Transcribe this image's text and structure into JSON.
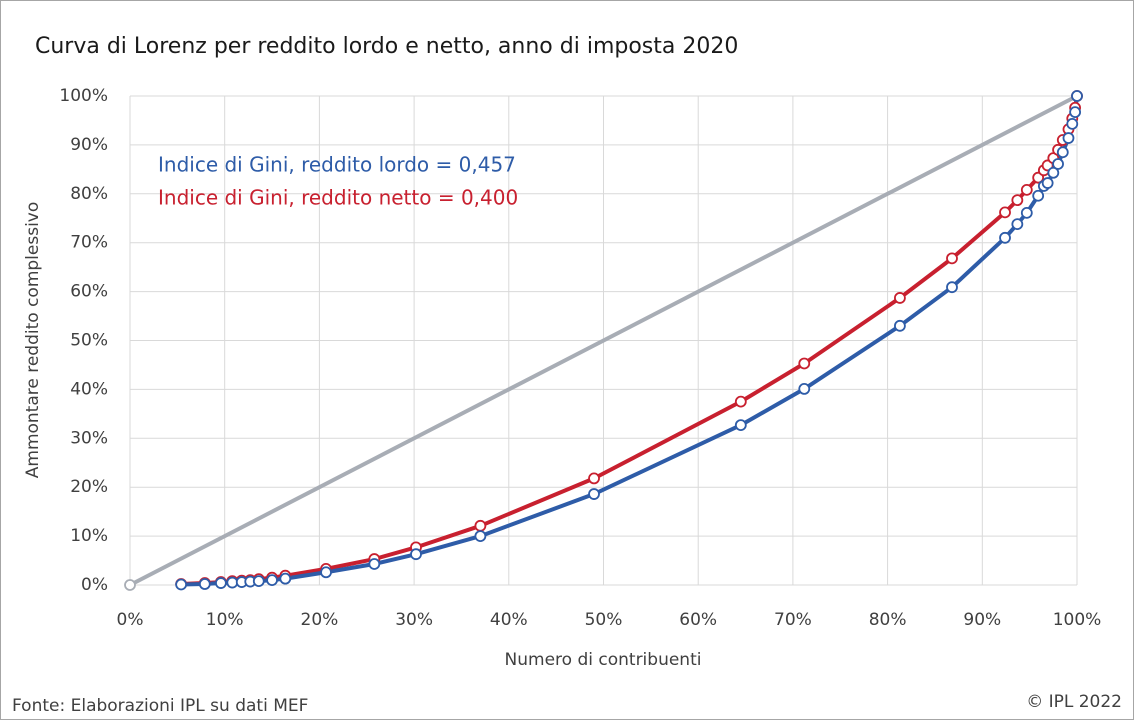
{
  "chart_data": {
    "type": "scatter",
    "title": "Curva di Lorenz per reddito lordo e netto, anno di imposta 2020",
    "x_label": "Numero di contribuenti",
    "y_label": "Ammontare reddito complessivo",
    "source": "Fonte: Elaborazioni IPL su dati MEF",
    "credit": "© IPL 2022",
    "annotations": [
      {
        "text": "Indice di Gini, reddito lordo = 0,457",
        "color": "#2e5ca8"
      },
      {
        "text": "Indice di Gini, reddito netto = 0,400",
        "color": "#c8202f"
      }
    ],
    "xlim": [
      0,
      100
    ],
    "ylim": [
      0,
      100
    ],
    "grid": true,
    "xticks": [
      {
        "value": 0,
        "label": "0%"
      },
      {
        "value": 10,
        "label": "10%"
      },
      {
        "value": 20,
        "label": "20%"
      },
      {
        "value": 30,
        "label": "30%"
      },
      {
        "value": 40,
        "label": "40%"
      },
      {
        "value": 50,
        "label": "50%"
      },
      {
        "value": 60,
        "label": "60%"
      },
      {
        "value": 70,
        "label": "70%"
      },
      {
        "value": 80,
        "label": "80%"
      },
      {
        "value": 90,
        "label": "90%"
      },
      {
        "value": 100,
        "label": "100%"
      }
    ],
    "yticks": [
      {
        "value": 0,
        "label": "0%"
      },
      {
        "value": 10,
        "label": "10%"
      },
      {
        "value": 20,
        "label": "20%"
      },
      {
        "value": 30,
        "label": "30%"
      },
      {
        "value": 40,
        "label": "40%"
      },
      {
        "value": 50,
        "label": "50%"
      },
      {
        "value": 60,
        "label": "60%"
      },
      {
        "value": 70,
        "label": "70%"
      },
      {
        "value": 80,
        "label": "80%"
      },
      {
        "value": 90,
        "label": "90%"
      },
      {
        "value": 100,
        "label": "100%"
      }
    ],
    "series": [
      {
        "color": "#a8adb5",
        "x": [
          0,
          100
        ],
        "values": [
          0,
          100
        ]
      },
      {
        "color": "#c8202f",
        "x": [
          5.4,
          7.9,
          9.6,
          10.8,
          11.8,
          12.7,
          13.6,
          15.0,
          16.4,
          20.7,
          25.8,
          30.2,
          37.0,
          49.0,
          64.5,
          71.2,
          81.3,
          86.8,
          92.4,
          93.7,
          94.7,
          95.9,
          96.5,
          96.9,
          97.5,
          98.0,
          98.5,
          99.1,
          99.5,
          99.8,
          100
        ],
        "values": [
          0.2,
          0.4,
          0.6,
          0.8,
          0.9,
          1.0,
          1.2,
          1.5,
          1.9,
          3.3,
          5.3,
          7.7,
          12.1,
          21.8,
          37.5,
          45.3,
          58.7,
          66.8,
          76.2,
          78.7,
          80.8,
          83.3,
          84.8,
          85.8,
          87.3,
          89.0,
          91.0,
          93.2,
          95.4,
          97.6,
          100
        ]
      },
      {
        "color": "#2e5ca8",
        "x": [
          5.4,
          7.9,
          9.6,
          10.8,
          11.8,
          12.7,
          13.6,
          15.0,
          16.4,
          20.7,
          25.8,
          30.2,
          37.0,
          49.0,
          64.5,
          71.2,
          81.3,
          86.8,
          92.4,
          93.7,
          94.7,
          95.9,
          96.5,
          96.9,
          97.5,
          98.0,
          98.5,
          99.1,
          99.5,
          99.8,
          100
        ],
        "values": [
          0.1,
          0.2,
          0.4,
          0.5,
          0.6,
          0.7,
          0.8,
          1.0,
          1.3,
          2.6,
          4.3,
          6.3,
          10.0,
          18.6,
          32.7,
          40.1,
          53.0,
          60.9,
          71.0,
          73.8,
          76.1,
          79.6,
          81.6,
          82.2,
          84.3,
          86.1,
          88.5,
          91.4,
          94.3,
          96.7,
          100
        ]
      }
    ]
  }
}
